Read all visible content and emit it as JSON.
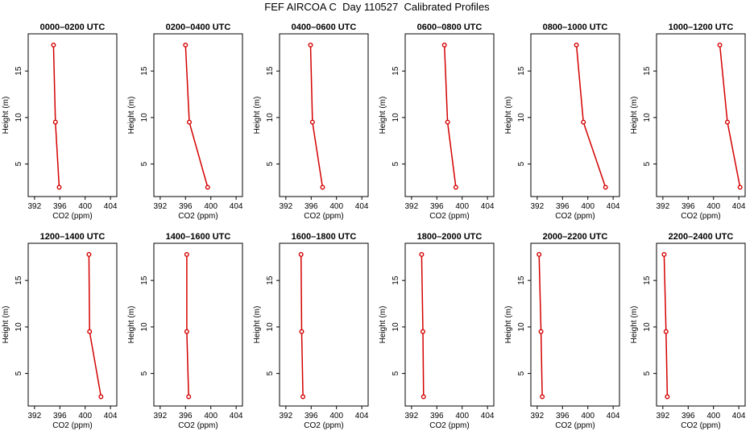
{
  "page": {
    "title": "FEF AIRCOA C  Day 110527  Calibrated Profiles"
  },
  "colors": {
    "profile_line": "#d40000",
    "axis": "#000000"
  },
  "chart_data": [
    {
      "type": "line",
      "title": "0000–0200 UTC",
      "xlabel": "CO2 (ppm)",
      "ylabel": "Height (m)",
      "xlim": [
        391,
        405
      ],
      "ylim": [
        1.5,
        19
      ],
      "xticks": [
        392,
        396,
        400,
        404
      ],
      "yticks": [
        5,
        10,
        15
      ],
      "series": [
        {
          "x": [
            395.0,
            395.3,
            395.9
          ],
          "y": [
            17.8,
            9.5,
            2.5
          ]
        }
      ]
    },
    {
      "type": "line",
      "title": "0200–0400 UTC",
      "xlabel": "CO2 (ppm)",
      "ylabel": "Height (m)",
      "xlim": [
        391,
        405
      ],
      "ylim": [
        1.5,
        19
      ],
      "xticks": [
        392,
        396,
        400,
        404
      ],
      "yticks": [
        5,
        10,
        15
      ],
      "series": [
        {
          "x": [
            396.0,
            396.6,
            399.5
          ],
          "y": [
            17.8,
            9.5,
            2.5
          ]
        }
      ]
    },
    {
      "type": "line",
      "title": "0400–0600 UTC",
      "xlabel": "CO2 (ppm)",
      "ylabel": "Height (m)",
      "xlim": [
        391,
        405
      ],
      "ylim": [
        1.5,
        19
      ],
      "xticks": [
        392,
        396,
        400,
        404
      ],
      "yticks": [
        5,
        10,
        15
      ],
      "series": [
        {
          "x": [
            395.9,
            396.2,
            397.8
          ],
          "y": [
            17.8,
            9.5,
            2.5
          ]
        }
      ]
    },
    {
      "type": "line",
      "title": "0600–0800 UTC",
      "xlabel": "CO2 (ppm)",
      "ylabel": "Height (m)",
      "xlim": [
        391,
        405
      ],
      "ylim": [
        1.5,
        19
      ],
      "xticks": [
        392,
        396,
        400,
        404
      ],
      "yticks": [
        5,
        10,
        15
      ],
      "series": [
        {
          "x": [
            397.2,
            397.7,
            399.0
          ],
          "y": [
            17.8,
            9.5,
            2.5
          ]
        }
      ]
    },
    {
      "type": "line",
      "title": "0800–1000 UTC",
      "xlabel": "CO2 (ppm)",
      "ylabel": "Height (m)",
      "xlim": [
        391,
        405
      ],
      "ylim": [
        1.5,
        19
      ],
      "xticks": [
        392,
        396,
        400,
        404
      ],
      "yticks": [
        5,
        10,
        15
      ],
      "series": [
        {
          "x": [
            398.2,
            399.3,
            402.8
          ],
          "y": [
            17.8,
            9.5,
            2.5
          ]
        }
      ]
    },
    {
      "type": "line",
      "title": "1000–1200 UTC",
      "xlabel": "CO2 (ppm)",
      "ylabel": "Height (m)",
      "xlim": [
        391,
        405
      ],
      "ylim": [
        1.5,
        19
      ],
      "xticks": [
        392,
        396,
        400,
        404
      ],
      "yticks": [
        5,
        10,
        15
      ],
      "series": [
        {
          "x": [
            401.0,
            402.2,
            404.2
          ],
          "y": [
            17.8,
            9.5,
            2.5
          ]
        }
      ]
    },
    {
      "type": "line",
      "title": "1200–1400 UTC",
      "xlabel": "CO2 (ppm)",
      "ylabel": "Height (m)",
      "xlim": [
        391,
        405
      ],
      "ylim": [
        1.5,
        19
      ],
      "xticks": [
        392,
        396,
        400,
        404
      ],
      "yticks": [
        5,
        10,
        15
      ],
      "series": [
        {
          "x": [
            400.6,
            400.7,
            402.5
          ],
          "y": [
            17.8,
            9.5,
            2.5
          ]
        }
      ]
    },
    {
      "type": "line",
      "title": "1400–1600 UTC",
      "xlabel": "CO2 (ppm)",
      "ylabel": "Height (m)",
      "xlim": [
        391,
        405
      ],
      "ylim": [
        1.5,
        19
      ],
      "xticks": [
        392,
        396,
        400,
        404
      ],
      "yticks": [
        5,
        10,
        15
      ],
      "series": [
        {
          "x": [
            396.2,
            396.2,
            396.5
          ],
          "y": [
            17.8,
            9.5,
            2.5
          ]
        }
      ]
    },
    {
      "type": "line",
      "title": "1600–1800 UTC",
      "xlabel": "CO2 (ppm)",
      "ylabel": "Height (m)",
      "xlim": [
        391,
        405
      ],
      "ylim": [
        1.5,
        19
      ],
      "xticks": [
        392,
        396,
        400,
        404
      ],
      "yticks": [
        5,
        10,
        15
      ],
      "series": [
        {
          "x": [
            394.4,
            394.5,
            394.7
          ],
          "y": [
            17.8,
            9.5,
            2.5
          ]
        }
      ]
    },
    {
      "type": "line",
      "title": "1800–2000 UTC",
      "xlabel": "CO2 (ppm)",
      "ylabel": "Height (m)",
      "xlim": [
        391,
        405
      ],
      "ylim": [
        1.5,
        19
      ],
      "xticks": [
        392,
        396,
        400,
        404
      ],
      "yticks": [
        5,
        10,
        15
      ],
      "series": [
        {
          "x": [
            393.6,
            393.8,
            393.9
          ],
          "y": [
            17.8,
            9.5,
            2.5
          ]
        }
      ]
    },
    {
      "type": "line",
      "title": "2000–2200 UTC",
      "xlabel": "CO2 (ppm)",
      "ylabel": "Height (m)",
      "xlim": [
        391,
        405
      ],
      "ylim": [
        1.5,
        19
      ],
      "xticks": [
        392,
        396,
        400,
        404
      ],
      "yticks": [
        5,
        10,
        15
      ],
      "series": [
        {
          "x": [
            392.3,
            392.6,
            392.8
          ],
          "y": [
            17.8,
            9.5,
            2.5
          ]
        }
      ]
    },
    {
      "type": "line",
      "title": "2200–2400 UTC",
      "xlabel": "CO2 (ppm)",
      "ylabel": "Height (m)",
      "xlim": [
        391,
        405
      ],
      "ylim": [
        1.5,
        19
      ],
      "xticks": [
        392,
        396,
        400,
        404
      ],
      "yticks": [
        5,
        10,
        15
      ],
      "series": [
        {
          "x": [
            392.2,
            392.5,
            392.7
          ],
          "y": [
            17.8,
            9.5,
            2.5
          ]
        }
      ]
    }
  ]
}
